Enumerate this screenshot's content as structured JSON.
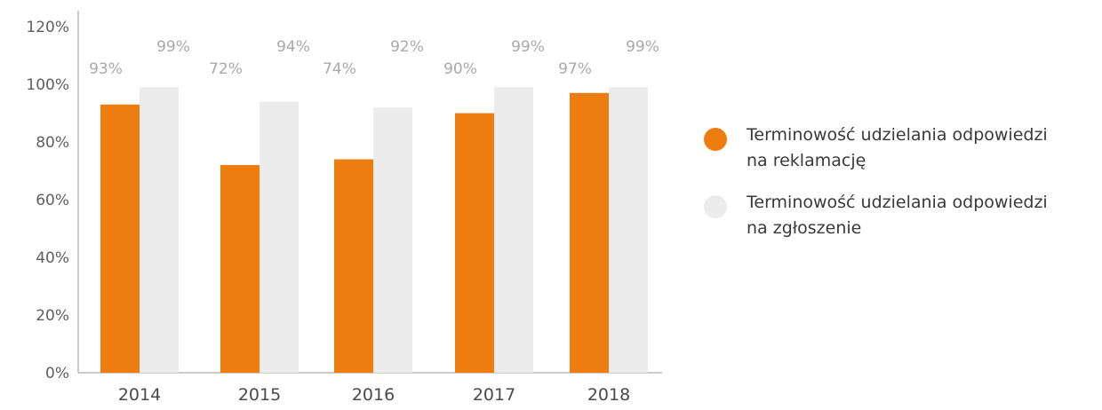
{
  "chart_data": {
    "type": "bar",
    "categories": [
      "2014",
      "2015",
      "2016",
      "2017",
      "2018"
    ],
    "series": [
      {
        "name": "Terminowość udzielania odpowiedzi na reklamację",
        "color": "#ee7d0f",
        "values": [
          93,
          72,
          74,
          90,
          97
        ],
        "labels": [
          "93%",
          "72%",
          "74%",
          "90%",
          "97%"
        ]
      },
      {
        "name": "Terminowość udzielania odpowiedzi na zgłoszenie",
        "color": "#ececec",
        "values": [
          99,
          94,
          92,
          99,
          99
        ],
        "labels": [
          "99%",
          "94%",
          "92%",
          "99%",
          "99%"
        ]
      }
    ],
    "y_ticks": [
      "0%",
      "20%",
      "40%",
      "60%",
      "80%",
      "100%",
      "120%"
    ],
    "ylim": [
      0,
      120
    ],
    "legend_position": "right",
    "grid": false
  },
  "legend": {
    "items": [
      {
        "line1": "Terminowość udzielania odpowiedzi",
        "line2": "na reklamację",
        "color": "#ee7d0f"
      },
      {
        "line1": "Terminowość udzielania odpowiedzi",
        "line2": "na zgłoszenie",
        "color": "#ececec"
      }
    ]
  }
}
